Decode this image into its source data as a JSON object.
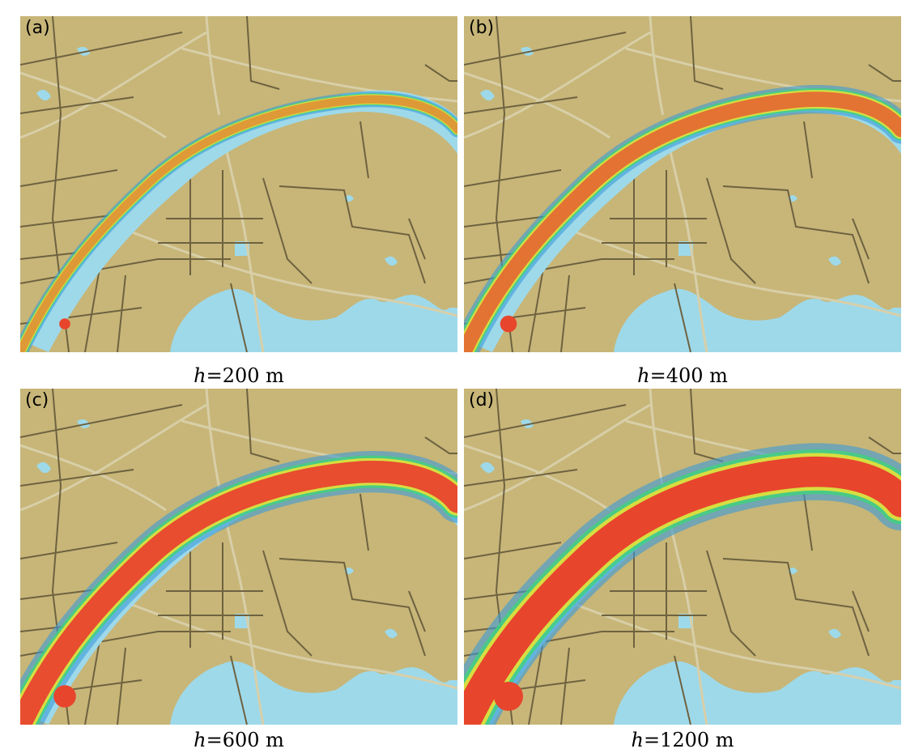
{
  "colors": {
    "land": "#c7b678",
    "water": "#9ed9ea",
    "road_major": "#6e6240",
    "road_minor": "#d8cfa8",
    "heat_low": "#3a9ad9",
    "heat_mid": "#3fd37a",
    "heat_mid2": "#f0e234",
    "heat_high": "#e8452d"
  },
  "panels": [
    {
      "letter": "(a)",
      "caption_var": "h",
      "caption_rest": "=200 m",
      "bandwidth_m": 200,
      "intensity": 0.2
    },
    {
      "letter": "(b)",
      "caption_var": "h",
      "caption_rest": "=400 m",
      "bandwidth_m": 400,
      "intensity": 0.45
    },
    {
      "letter": "(c)",
      "caption_var": "h",
      "caption_rest": "=600 m",
      "bandwidth_m": 600,
      "intensity": 0.7
    },
    {
      "letter": "(d)",
      "caption_var": "h",
      "caption_rest": "=1200 m",
      "bandwidth_m": 1200,
      "intensity": 1.0
    }
  ]
}
